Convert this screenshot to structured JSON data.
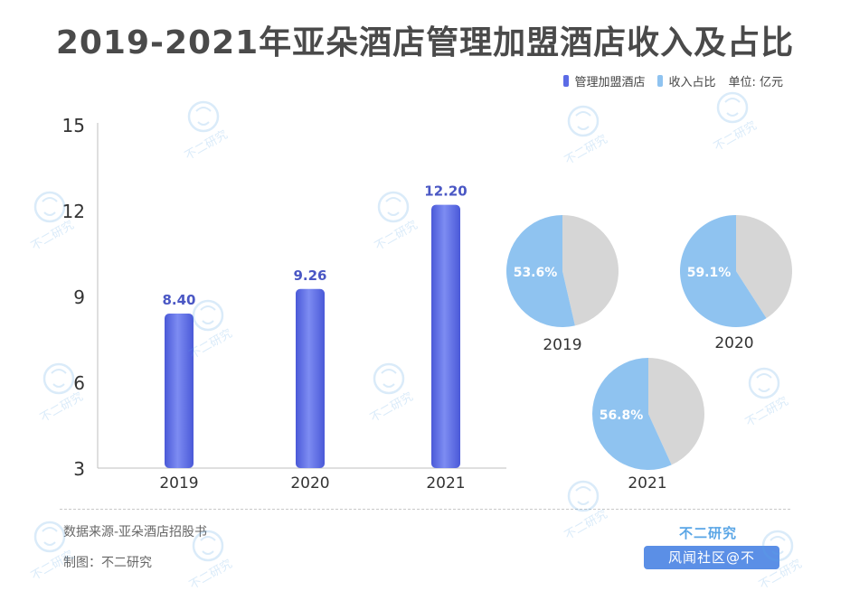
{
  "title": "2019-2021年亚朵酒店管理加盟酒店收入及占比",
  "legend": {
    "series_bar": "管理加盟酒店",
    "series_pie": "收入占比",
    "unit": "单位: 亿元"
  },
  "colors": {
    "bar": "#5b6be6",
    "bar_label": "#4a57c4",
    "pie_highlight": "#8fc3f0",
    "pie_rest": "#d6d6d6",
    "axis_text": "#333333"
  },
  "chart_data": [
    {
      "type": "bar",
      "categories": [
        "2019",
        "2020",
        "2021"
      ],
      "series": [
        {
          "name": "管理加盟酒店",
          "values": [
            8.4,
            9.26,
            12.2
          ],
          "labels": [
            "8.40",
            "9.26",
            "12.20"
          ]
        }
      ],
      "ylim": [
        3,
        15
      ],
      "yticks": [
        "15",
        "12",
        "9",
        "6",
        "3"
      ],
      "ylabel": "",
      "xlabel": "",
      "grid": false
    },
    {
      "type": "pie",
      "name": "收入占比",
      "pies": [
        {
          "label": "2019",
          "value": 53.6,
          "text": "53.6%"
        },
        {
          "label": "2020",
          "value": 59.1,
          "text": "59.1%"
        },
        {
          "label": "2021",
          "value": 56.8,
          "text": "56.8%"
        }
      ]
    }
  ],
  "footer": {
    "source": "数据来源-亚朵酒店招股书",
    "maker": "制图：不二研究",
    "brand": "不二研究",
    "brand_bar": "风闻社区@不"
  },
  "watermark_text": "不二研究"
}
